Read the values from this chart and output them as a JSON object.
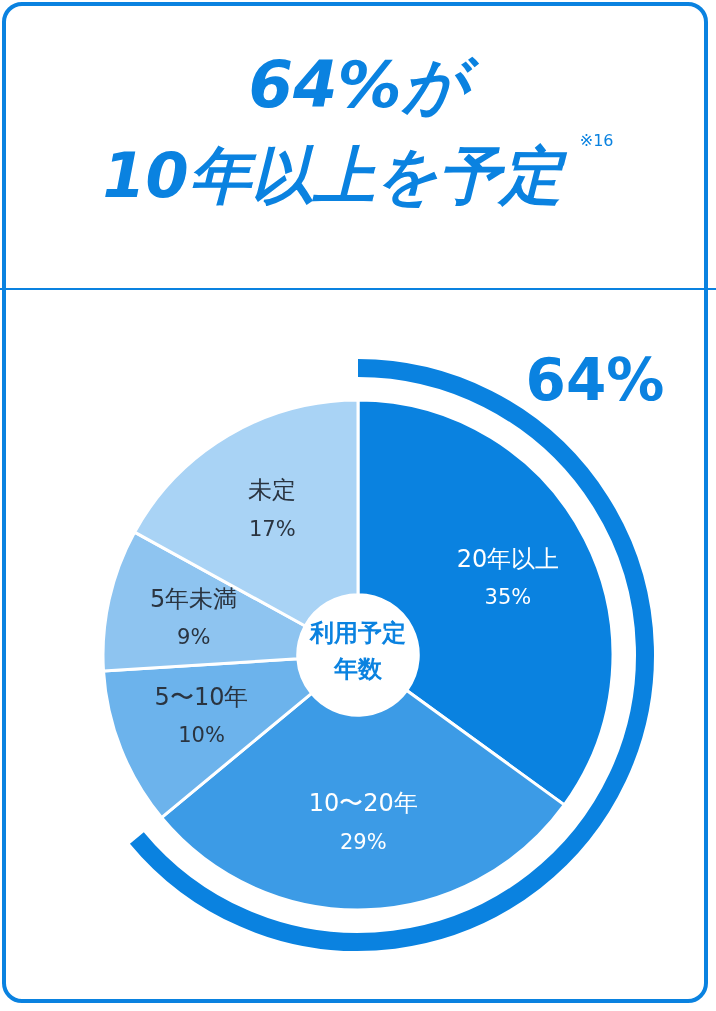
{
  "chart_data": {
    "type": "donut",
    "title": "64%が",
    "subtitle": "10年以上を予定",
    "categories": [
      "20年以上",
      "10〜20年",
      "5〜10年",
      "5年未満",
      "未定"
    ],
    "values": [
      35,
      29,
      10,
      9,
      17
    ],
    "colors": [
      "#0a82e0",
      "#3c9be6",
      "#6cb3ec",
      "#8ec4f0",
      "#a9d3f5"
    ],
    "value_labels": [
      "35%",
      "29%",
      "10%",
      "9%",
      "17%"
    ],
    "annotations": [
      "※16",
      "64%",
      "利用予定年数"
    ]
  }
}
